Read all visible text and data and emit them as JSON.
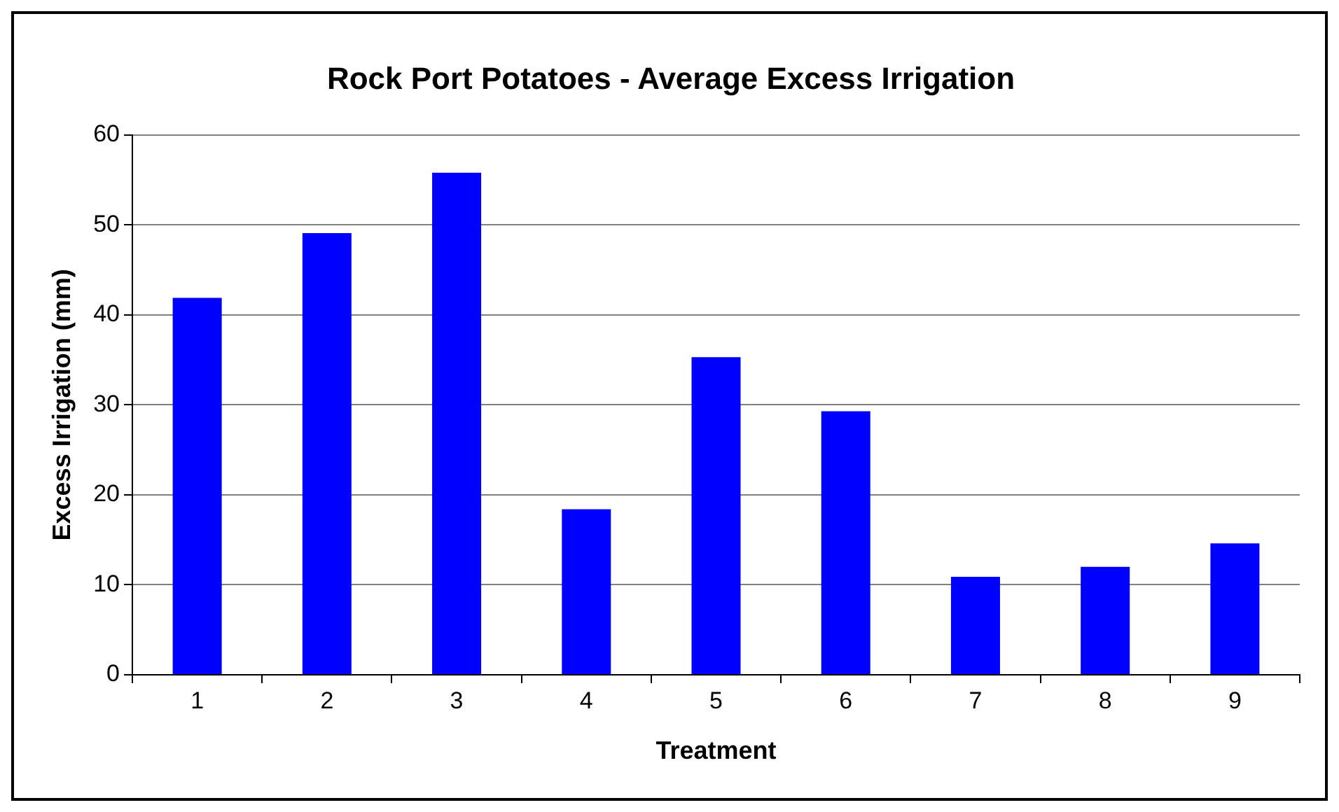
{
  "chart_data": {
    "type": "bar",
    "title": "Rock Port Potatoes - Average Excess Irrigation",
    "xlabel": "Treatment",
    "ylabel": "Excess Irrigation (mm)",
    "categories": [
      "1",
      "2",
      "3",
      "4",
      "5",
      "6",
      "7",
      "8",
      "9"
    ],
    "values": [
      41.9,
      49.1,
      55.8,
      18.4,
      35.3,
      29.3,
      10.9,
      12.0,
      14.6
    ],
    "color": "#0000ff",
    "ylim": [
      0,
      60
    ],
    "yticks": [
      0,
      10,
      20,
      30,
      40,
      50,
      60
    ],
    "grid": "y",
    "legend": false
  }
}
